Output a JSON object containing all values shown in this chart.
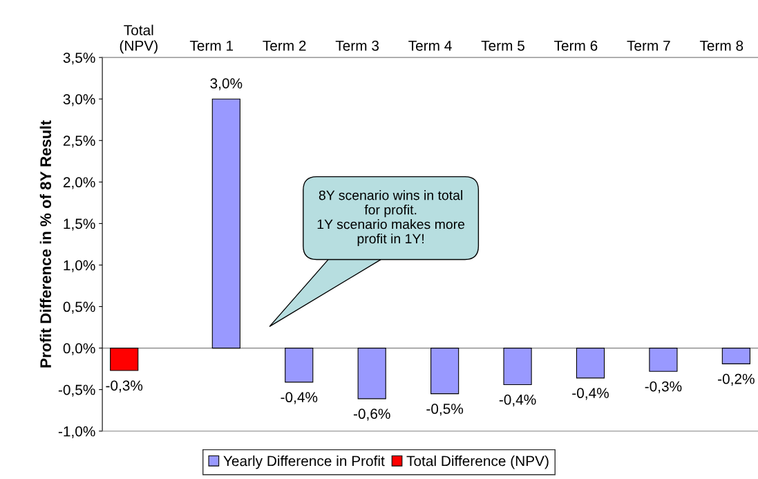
{
  "chart_data": {
    "type": "bar",
    "ylabel": "Profit Difference in % of 8Y Result",
    "categories": [
      "Total\n(NPV)",
      "Term 1",
      "Term 2",
      "Term 3",
      "Term 4",
      "Term 5",
      "Term 6",
      "Term 7",
      "Term 8"
    ],
    "series": [
      {
        "name": "Yearly Difference in Profit",
        "color": "#9999ff",
        "values": [
          null,
          3.0,
          -0.41,
          -0.61,
          -0.55,
          -0.44,
          -0.36,
          -0.28,
          -0.19
        ],
        "value_labels": [
          null,
          "3,0%",
          "-0,4%",
          "-0,6%",
          "-0,5%",
          "-0,4%",
          "-0,4%",
          "-0,3%",
          "-0,2%"
        ]
      },
      {
        "name": "Total Difference (NPV)",
        "color": "#ff0000",
        "values": [
          -0.27,
          null,
          null,
          null,
          null,
          null,
          null,
          null,
          null
        ],
        "value_labels": [
          "-0,3%",
          null,
          null,
          null,
          null,
          null,
          null,
          null,
          null
        ]
      }
    ],
    "ylim": [
      -1.0,
      3.5
    ],
    "yticks": [
      {
        "value": -1.0,
        "label": "-1,0%"
      },
      {
        "value": -0.5,
        "label": "-0,5%"
      },
      {
        "value": 0.0,
        "label": "0,0%"
      },
      {
        "value": 0.5,
        "label": "0,5%"
      },
      {
        "value": 1.0,
        "label": "1,0%"
      },
      {
        "value": 1.5,
        "label": "1,5%"
      },
      {
        "value": 2.0,
        "label": "2,0%"
      },
      {
        "value": 2.5,
        "label": "2,5%"
      },
      {
        "value": 3.0,
        "label": "3,0%"
      },
      {
        "value": 3.5,
        "label": "3,5%"
      }
    ],
    "annotations": [
      "8Y scenario wins in total\nfor profit.\n1Y scenario makes more\nprofit in 1Y!"
    ],
    "legend": "bottom"
  }
}
